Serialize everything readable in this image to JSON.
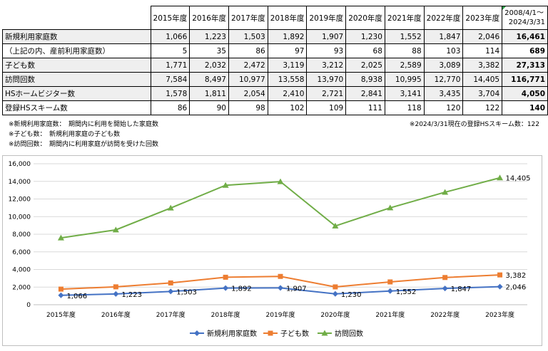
{
  "table": {
    "years": [
      "2015年度",
      "2016年度",
      "2017年度",
      "2018年度",
      "2019年度",
      "2020年度",
      "2021年度",
      "2022年度",
      "2023年度"
    ],
    "cumulative_header": [
      "2008/4/1～",
      "2024/3/31"
    ],
    "rows": [
      {
        "label": "新規利用家庭数",
        "values": [
          "1,066",
          "1,223",
          "1,503",
          "1,892",
          "1,907",
          "1,230",
          "1,552",
          "1,847",
          "2,046"
        ],
        "total": "16,461"
      },
      {
        "label": "（上記の内、産前利用家庭数）",
        "values": [
          "5",
          "35",
          "86",
          "97",
          "93",
          "68",
          "88",
          "103",
          "114"
        ],
        "total": "689"
      },
      {
        "label": "子ども数",
        "values": [
          "1,771",
          "2,032",
          "2,472",
          "3,119",
          "3,212",
          "2,025",
          "2,589",
          "3,089",
          "3,382"
        ],
        "total": "27,313"
      },
      {
        "label": "訪問回数",
        "values": [
          "7,584",
          "8,497",
          "10,977",
          "13,558",
          "13,970",
          "8,938",
          "10,995",
          "12,770",
          "14,405"
        ],
        "total": "116,771"
      },
      {
        "label": "HSホームビジター数",
        "values": [
          "1,578",
          "1,811",
          "2,054",
          "2,410",
          "2,721",
          "2,841",
          "3,141",
          "3,435",
          "3,704"
        ],
        "total": "4,050"
      },
      {
        "label": "登録HSスキーム数",
        "values": [
          "86",
          "90",
          "98",
          "102",
          "109",
          "111",
          "118",
          "120",
          "122"
        ],
        "total": "140"
      }
    ]
  },
  "notes": {
    "left": [
      "※新規利用家庭数：　期間内に利用を開始した家庭数",
      "※子ども数：　新規利用家庭の子ども数",
      "※訪問回数：　期間内に利用家庭が訪問を受けた回数"
    ],
    "right": "※2024/3/31現在の登録HSスキーム数：122"
  },
  "chart_data": {
    "type": "line",
    "categories": [
      "2015年度",
      "2016年度",
      "2017年度",
      "2018年度",
      "2019年度",
      "2020年度",
      "2021年度",
      "2022年度",
      "2023年度"
    ],
    "ylim": [
      0,
      16000
    ],
    "yticks": [
      "0",
      "2,000",
      "4,000",
      "6,000",
      "8,000",
      "10,000",
      "12,000",
      "14,000",
      "16,000"
    ],
    "grid": true,
    "legend_position": "bottom",
    "series": [
      {
        "name": "新規利用家庭数",
        "color": "#4472c4",
        "marker": "diamond",
        "values": [
          1066,
          1223,
          1503,
          1892,
          1907,
          1230,
          1552,
          1847,
          2046
        ],
        "labels": [
          "1,066",
          "1,223",
          "1,503",
          "1,892",
          "1,907",
          "1,230",
          "1,552",
          "1,847",
          "2,046"
        ]
      },
      {
        "name": "子ども数",
        "color": "#ed7d31",
        "marker": "square",
        "values": [
          1771,
          2032,
          2472,
          3119,
          3212,
          2025,
          2589,
          3089,
          3382
        ],
        "labels": [
          "",
          "",
          "",
          "",
          "",
          "",
          "",
          "",
          "3,382"
        ]
      },
      {
        "name": "訪問回数",
        "color": "#70ad47",
        "marker": "triangle",
        "values": [
          7584,
          8497,
          10977,
          13558,
          13970,
          8938,
          10995,
          12770,
          14405
        ],
        "labels": [
          "",
          "",
          "",
          "",
          "",
          "",
          "",
          "",
          "14,405"
        ]
      }
    ]
  }
}
